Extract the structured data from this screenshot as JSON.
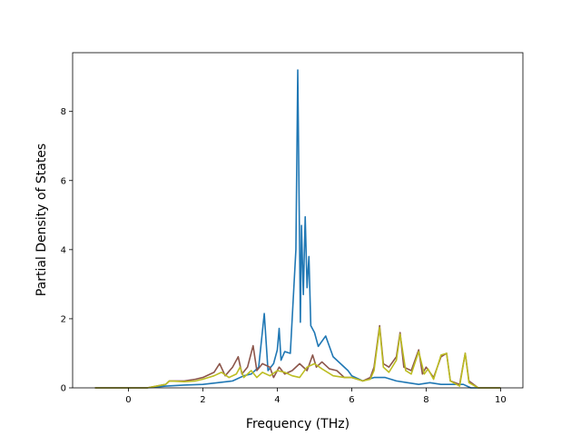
{
  "chart_data": {
    "type": "line",
    "xlabel": "Frequency (THz)",
    "ylabel": "Partial Density of States",
    "xlim": [
      -1.5,
      10.6
    ],
    "ylim": [
      0,
      9.7
    ],
    "x_ticks": [
      0,
      2,
      4,
      6,
      8,
      10
    ],
    "y_ticks": [
      0,
      2,
      4,
      6,
      8
    ],
    "grid": false,
    "legend": "none",
    "series": [
      {
        "color": "#1f77b4",
        "points": [
          [
            -0.9,
            0
          ],
          [
            0.5,
            0
          ],
          [
            1.0,
            0.05
          ],
          [
            1.5,
            0.08
          ],
          [
            2.0,
            0.1
          ],
          [
            2.4,
            0.15
          ],
          [
            2.8,
            0.2
          ],
          [
            3.1,
            0.35
          ],
          [
            3.3,
            0.4
          ],
          [
            3.5,
            0.6
          ],
          [
            3.65,
            2.15
          ],
          [
            3.75,
            0.5
          ],
          [
            3.9,
            0.7
          ],
          [
            4.0,
            1.1
          ],
          [
            4.05,
            1.72
          ],
          [
            4.1,
            0.8
          ],
          [
            4.2,
            1.05
          ],
          [
            4.35,
            1.0
          ],
          [
            4.45,
            3.0
          ],
          [
            4.5,
            4.0
          ],
          [
            4.55,
            9.2
          ],
          [
            4.6,
            4.0
          ],
          [
            4.62,
            1.9
          ],
          [
            4.65,
            4.7
          ],
          [
            4.7,
            2.7
          ],
          [
            4.75,
            4.95
          ],
          [
            4.8,
            2.9
          ],
          [
            4.85,
            3.8
          ],
          [
            4.9,
            1.8
          ],
          [
            5.0,
            1.6
          ],
          [
            5.1,
            1.2
          ],
          [
            5.3,
            1.5
          ],
          [
            5.5,
            0.9
          ],
          [
            5.7,
            0.7
          ],
          [
            5.9,
            0.5
          ],
          [
            6.0,
            0.35
          ],
          [
            6.3,
            0.2
          ],
          [
            6.6,
            0.3
          ],
          [
            6.9,
            0.3
          ],
          [
            7.2,
            0.2
          ],
          [
            7.5,
            0.15
          ],
          [
            7.8,
            0.1
          ],
          [
            8.1,
            0.15
          ],
          [
            8.4,
            0.1
          ],
          [
            8.7,
            0.1
          ],
          [
            9.0,
            0.1
          ],
          [
            9.2,
            0
          ],
          [
            10.0,
            0
          ]
        ]
      },
      {
        "color": "#8c564b",
        "points": [
          [
            -0.9,
            0
          ],
          [
            0.5,
            0
          ],
          [
            1.0,
            0.1
          ],
          [
            1.1,
            0.2
          ],
          [
            1.5,
            0.2
          ],
          [
            1.8,
            0.25
          ],
          [
            2.0,
            0.3
          ],
          [
            2.3,
            0.45
          ],
          [
            2.45,
            0.7
          ],
          [
            2.6,
            0.35
          ],
          [
            2.8,
            0.6
          ],
          [
            2.95,
            0.9
          ],
          [
            3.05,
            0.4
          ],
          [
            3.2,
            0.6
          ],
          [
            3.35,
            1.22
          ],
          [
            3.45,
            0.5
          ],
          [
            3.6,
            0.7
          ],
          [
            3.8,
            0.6
          ],
          [
            3.9,
            0.3
          ],
          [
            4.05,
            0.6
          ],
          [
            4.2,
            0.4
          ],
          [
            4.4,
            0.5
          ],
          [
            4.6,
            0.7
          ],
          [
            4.8,
            0.5
          ],
          [
            4.95,
            0.95
          ],
          [
            5.05,
            0.6
          ],
          [
            5.2,
            0.75
          ],
          [
            5.4,
            0.55
          ],
          [
            5.6,
            0.5
          ],
          [
            5.8,
            0.3
          ],
          [
            6.0,
            0.3
          ],
          [
            6.3,
            0.2
          ],
          [
            6.5,
            0.3
          ],
          [
            6.6,
            0.6
          ],
          [
            6.75,
            1.8
          ],
          [
            6.85,
            0.7
          ],
          [
            7.0,
            0.6
          ],
          [
            7.2,
            0.9
          ],
          [
            7.3,
            1.6
          ],
          [
            7.4,
            0.6
          ],
          [
            7.6,
            0.5
          ],
          [
            7.8,
            1.1
          ],
          [
            7.9,
            0.4
          ],
          [
            8.0,
            0.6
          ],
          [
            8.2,
            0.3
          ],
          [
            8.4,
            0.9
          ],
          [
            8.55,
            1.0
          ],
          [
            8.65,
            0.2
          ],
          [
            8.9,
            0.1
          ],
          [
            9.05,
            1.0
          ],
          [
            9.15,
            0.2
          ],
          [
            9.4,
            0
          ],
          [
            10.0,
            0
          ]
        ]
      },
      {
        "color": "#bcbd22",
        "points": [
          [
            -0.9,
            0
          ],
          [
            0.5,
            0
          ],
          [
            1.0,
            0.1
          ],
          [
            1.1,
            0.2
          ],
          [
            1.5,
            0.18
          ],
          [
            1.8,
            0.2
          ],
          [
            2.0,
            0.25
          ],
          [
            2.3,
            0.35
          ],
          [
            2.5,
            0.45
          ],
          [
            2.7,
            0.3
          ],
          [
            2.9,
            0.4
          ],
          [
            3.0,
            0.6
          ],
          [
            3.1,
            0.3
          ],
          [
            3.3,
            0.5
          ],
          [
            3.45,
            0.3
          ],
          [
            3.6,
            0.45
          ],
          [
            3.8,
            0.35
          ],
          [
            4.0,
            0.5
          ],
          [
            4.2,
            0.45
          ],
          [
            4.4,
            0.35
          ],
          [
            4.6,
            0.3
          ],
          [
            4.8,
            0.6
          ],
          [
            5.0,
            0.7
          ],
          [
            5.2,
            0.55
          ],
          [
            5.5,
            0.35
          ],
          [
            5.8,
            0.3
          ],
          [
            6.0,
            0.3
          ],
          [
            6.3,
            0.2
          ],
          [
            6.5,
            0.25
          ],
          [
            6.6,
            0.5
          ],
          [
            6.75,
            1.75
          ],
          [
            6.85,
            0.6
          ],
          [
            7.0,
            0.45
          ],
          [
            7.2,
            0.8
          ],
          [
            7.3,
            1.55
          ],
          [
            7.45,
            0.5
          ],
          [
            7.6,
            0.4
          ],
          [
            7.8,
            1.05
          ],
          [
            7.95,
            0.4
          ],
          [
            8.05,
            0.55
          ],
          [
            8.2,
            0.25
          ],
          [
            8.4,
            0.95
          ],
          [
            8.55,
            1.0
          ],
          [
            8.65,
            0.2
          ],
          [
            8.9,
            0.05
          ],
          [
            9.05,
            1.0
          ],
          [
            9.15,
            0.15
          ],
          [
            9.4,
            0
          ],
          [
            10.0,
            0
          ]
        ]
      }
    ]
  }
}
